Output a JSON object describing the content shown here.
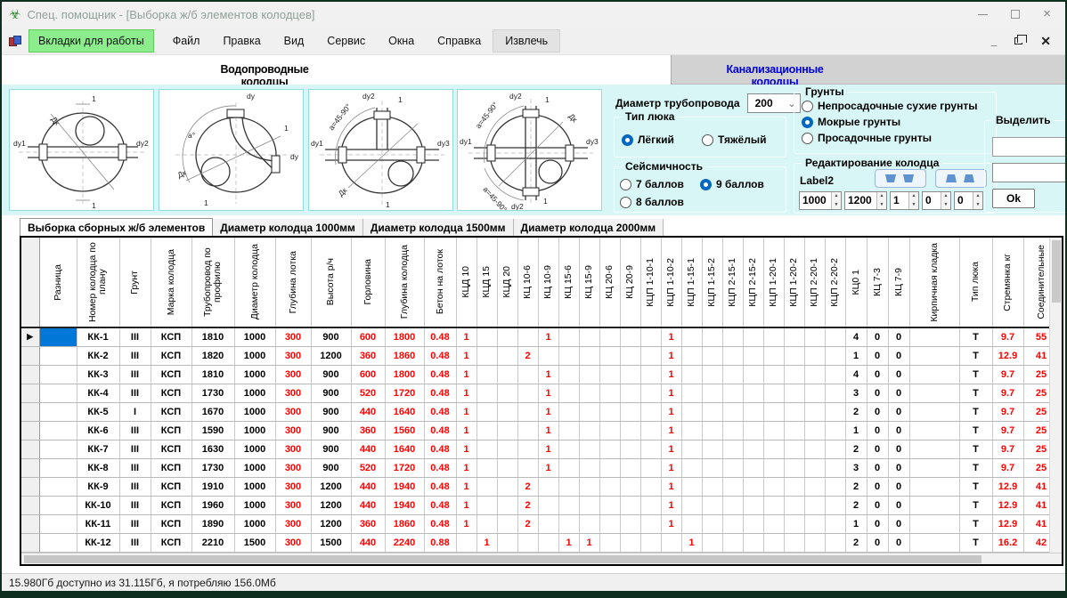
{
  "window": {
    "title": "Спец. помощник - [Выборка ж/б элементов колодцев]",
    "status_bar": "15.980Гб доступно из 31.115Гб, я потребляю 156.0Мб"
  },
  "colors": {
    "accent_green": "#8bed8b",
    "tab_blue": "#0000dd",
    "sel_blue": "#0078d7",
    "val_red": "#ff0000",
    "panel_cyan": "#d8f6f6",
    "radio_blue": "#0267c1"
  },
  "icons": {
    "app": "☣",
    "close": "×",
    "mdi_close": "✕",
    "mdi_min": "_",
    "chevron": "⌄",
    "spin_up": "▲",
    "spin_down": "▼",
    "row_arrow": "▶"
  },
  "menu": {
    "items": [
      "Вкладки для работы",
      "Файл",
      "Правка",
      "Вид",
      "Сервис",
      "Окна",
      "Справка",
      "Извлечь"
    ]
  },
  "main_tabs": [
    "Водопроводные колодцы",
    "Канализационные колодцы"
  ],
  "controls": {
    "pipe_diameter": {
      "label": "Диаметр трубопровода",
      "value": "200"
    },
    "hatch": {
      "title": "Тип люка",
      "options": [
        "Лёгкий",
        "Тяжёлый"
      ],
      "selected": 0
    },
    "seismic": {
      "title": "Сейсмичность",
      "options": [
        "7 баллов",
        "9 баллов",
        "8 баллов"
      ],
      "selected": 1
    },
    "soil": {
      "title": "Грунты",
      "options": [
        "Непросадочные сухие грунты",
        "Мокрые грунты",
        "Просадочные грунты"
      ],
      "selected": 1
    },
    "edit": {
      "title": "Редактирование колодца",
      "label": "Label2",
      "spinners": [
        "1000",
        "1200",
        "1",
        "0",
        "0"
      ]
    },
    "select": {
      "title": "Выделить",
      "ok": "Ok",
      "textbox_value": "",
      "combo_value": ""
    }
  },
  "diagrams": [
    {
      "name": "well-straight",
      "labels": {
        "left": "dу1",
        "right": "dу2",
        "diameter": "Дк",
        "section": "1"
      }
    },
    {
      "name": "well-corner",
      "labels": {
        "top": "dу",
        "right": "dу",
        "angle": "a°",
        "diameter": "Дк",
        "section": "1"
      }
    },
    {
      "name": "well-tee",
      "labels": {
        "left": "dу1",
        "top": "dу2",
        "right": "dу3",
        "angle": "a=45-90°",
        "diameter": "Дк",
        "section": "1"
      }
    },
    {
      "name": "well-cross",
      "labels": {
        "left": "dу1",
        "top": "dу2",
        "right": "dу3",
        "bottom": "dу2",
        "angle": "a=45-90°",
        "angle2": "a=45-90°",
        "diameter": "Дк",
        "section": "1"
      }
    }
  ],
  "table_tabs": [
    "Выборка сборных ж/б элементов",
    "Диаметр колодца 1000мм",
    "Диаметр колодца 1500мм",
    "Диаметр колодца 2000мм"
  ],
  "table": {
    "selected_row": 0,
    "headers": [
      "Разница",
      "Номер колодца по плану",
      "Грунт",
      "Марка колодца",
      "Трубопровод по профилю",
      "Диаметр колодца",
      "Глубина лотка",
      "Высота р/ч",
      "Горловина",
      "Глубина колодца",
      "Бетон на лоток",
      "КЦД 10",
      "КЦД 15",
      "КЦД 20",
      "КЦ 10-6",
      "КЦ 10-9",
      "КЦ 15-6",
      "КЦ 15-9",
      "КЦ 20-6",
      "КЦ 20-9",
      "КЦП 1-10-1",
      "КЦП 1-10-2",
      "КЦП 1-15-1",
      "КЦП 1-15-2",
      "КЦП 2-15-1",
      "КЦП 2-15-2",
      "КЦП 1-20-1",
      "КЦП 1-20-2",
      "КЦП 2-20-1",
      "КЦП 2-20-2",
      "КЦ0 1",
      "КЦ 7-3",
      "КЦ 7-9",
      "Кирпичная кладка",
      "Тип люка",
      "Стремянка кг",
      "Соединительные"
    ],
    "red_columns": [
      6,
      8,
      9,
      10,
      11,
      12,
      13,
      14,
      15,
      16,
      17,
      18,
      19,
      20,
      21,
      22,
      23,
      24,
      25,
      26,
      27,
      28,
      29,
      35,
      36
    ],
    "rows": [
      [
        "",
        "КК-1",
        "III",
        "КСП",
        "1810",
        "1000",
        "300",
        "900",
        "600",
        "1800",
        "0.48",
        "1",
        "",
        "",
        "",
        "1",
        "",
        "",
        "",
        "",
        "",
        "1",
        "",
        "",
        "",
        "",
        "",
        "",
        "",
        "",
        "4",
        "0",
        "0",
        "",
        "Т",
        "9.7",
        "55"
      ],
      [
        "",
        "КК-2",
        "III",
        "КСП",
        "1820",
        "1000",
        "300",
        "1200",
        "360",
        "1860",
        "0.48",
        "1",
        "",
        "",
        "2",
        "",
        "",
        "",
        "",
        "",
        "",
        "1",
        "",
        "",
        "",
        "",
        "",
        "",
        "",
        "",
        "1",
        "0",
        "0",
        "",
        "Т",
        "12.9",
        "41"
      ],
      [
        "",
        "КК-3",
        "III",
        "КСП",
        "1810",
        "1000",
        "300",
        "900",
        "600",
        "1800",
        "0.48",
        "1",
        "",
        "",
        "",
        "1",
        "",
        "",
        "",
        "",
        "",
        "1",
        "",
        "",
        "",
        "",
        "",
        "",
        "",
        "",
        "4",
        "0",
        "0",
        "",
        "Т",
        "9.7",
        "25"
      ],
      [
        "",
        "КК-4",
        "III",
        "КСП",
        "1730",
        "1000",
        "300",
        "900",
        "520",
        "1720",
        "0.48",
        "1",
        "",
        "",
        "",
        "1",
        "",
        "",
        "",
        "",
        "",
        "1",
        "",
        "",
        "",
        "",
        "",
        "",
        "",
        "",
        "3",
        "0",
        "0",
        "",
        "Т",
        "9.7",
        "25"
      ],
      [
        "",
        "КК-5",
        "I",
        "КСП",
        "1670",
        "1000",
        "300",
        "900",
        "440",
        "1640",
        "0.48",
        "1",
        "",
        "",
        "",
        "1",
        "",
        "",
        "",
        "",
        "",
        "1",
        "",
        "",
        "",
        "",
        "",
        "",
        "",
        "",
        "2",
        "0",
        "0",
        "",
        "Т",
        "9.7",
        "25"
      ],
      [
        "",
        "КК-6",
        "III",
        "КСП",
        "1590",
        "1000",
        "300",
        "900",
        "360",
        "1560",
        "0.48",
        "1",
        "",
        "",
        "",
        "1",
        "",
        "",
        "",
        "",
        "",
        "1",
        "",
        "",
        "",
        "",
        "",
        "",
        "",
        "",
        "1",
        "0",
        "0",
        "",
        "Т",
        "9.7",
        "25"
      ],
      [
        "",
        "КК-7",
        "III",
        "КСП",
        "1630",
        "1000",
        "300",
        "900",
        "440",
        "1640",
        "0.48",
        "1",
        "",
        "",
        "",
        "1",
        "",
        "",
        "",
        "",
        "",
        "1",
        "",
        "",
        "",
        "",
        "",
        "",
        "",
        "",
        "2",
        "0",
        "0",
        "",
        "Т",
        "9.7",
        "25"
      ],
      [
        "",
        "КК-8",
        "III",
        "КСП",
        "1730",
        "1000",
        "300",
        "900",
        "520",
        "1720",
        "0.48",
        "1",
        "",
        "",
        "",
        "1",
        "",
        "",
        "",
        "",
        "",
        "1",
        "",
        "",
        "",
        "",
        "",
        "",
        "",
        "",
        "3",
        "0",
        "0",
        "",
        "Т",
        "9.7",
        "25"
      ],
      [
        "",
        "КК-9",
        "III",
        "КСП",
        "1910",
        "1000",
        "300",
        "1200",
        "440",
        "1940",
        "0.48",
        "1",
        "",
        "",
        "2",
        "",
        "",
        "",
        "",
        "",
        "",
        "1",
        "",
        "",
        "",
        "",
        "",
        "",
        "",
        "",
        "2",
        "0",
        "0",
        "",
        "Т",
        "12.9",
        "41"
      ],
      [
        "",
        "КК-10",
        "III",
        "КСП",
        "1960",
        "1000",
        "300",
        "1200",
        "440",
        "1940",
        "0.48",
        "1",
        "",
        "",
        "2",
        "",
        "",
        "",
        "",
        "",
        "",
        "1",
        "",
        "",
        "",
        "",
        "",
        "",
        "",
        "",
        "2",
        "0",
        "0",
        "",
        "Т",
        "12.9",
        "41"
      ],
      [
        "",
        "КК-11",
        "III",
        "КСП",
        "1890",
        "1000",
        "300",
        "1200",
        "360",
        "1860",
        "0.48",
        "1",
        "",
        "",
        "2",
        "",
        "",
        "",
        "",
        "",
        "",
        "1",
        "",
        "",
        "",
        "",
        "",
        "",
        "",
        "",
        "1",
        "0",
        "0",
        "",
        "Т",
        "12.9",
        "41"
      ],
      [
        "",
        "КК-12",
        "III",
        "КСП",
        "2210",
        "1500",
        "300",
        "1500",
        "440",
        "2240",
        "0.88",
        "",
        "1",
        "",
        "",
        "",
        "1",
        "1",
        "",
        "",
        "",
        "",
        "1",
        "",
        "",
        "",
        "",
        "",
        "",
        "",
        "2",
        "0",
        "0",
        "",
        "Т",
        "16.2",
        "42"
      ]
    ]
  }
}
